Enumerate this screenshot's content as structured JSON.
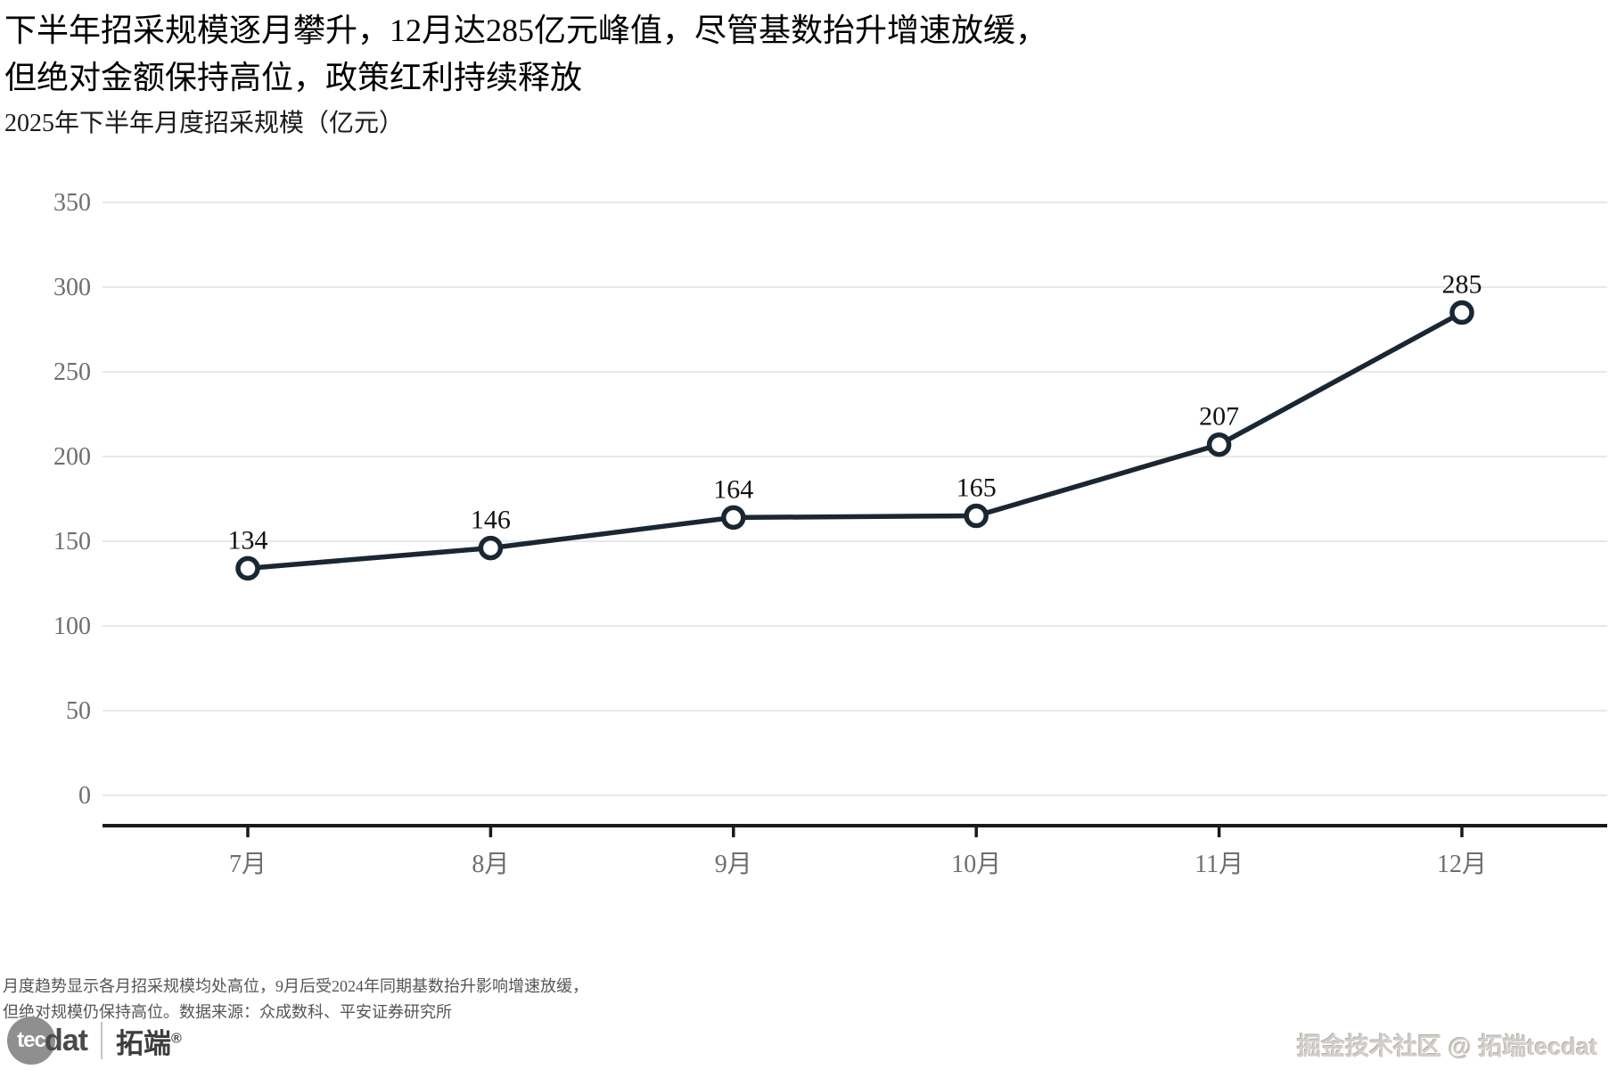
{
  "title": {
    "line1": "下半年招采规模逐月攀升，12月达285亿元峰值，尽管基数抬升增速放缓，",
    "line2": "但绝对金额保持高位，政策红利持续释放"
  },
  "subtitle": "2025年下半年月度招采规模（亿元）",
  "chart_data": {
    "type": "line",
    "title": "2025年下半年月度招采规模（亿元）",
    "categories": [
      "7月",
      "8月",
      "9月",
      "10月",
      "11月",
      "12月"
    ],
    "values": [
      134,
      146,
      164,
      165,
      207,
      285
    ],
    "xlabel": "",
    "ylabel": "",
    "ylim": [
      0,
      350
    ],
    "yticks": [
      0,
      50,
      100,
      150,
      200,
      250,
      300,
      350
    ],
    "grid": true,
    "legend": "none",
    "marker": "open-circle",
    "value_labels_shown": true,
    "colors": {
      "line": "#1a2733",
      "marker_fill": "#ffffff",
      "grid": "#dadada",
      "axis": "#1a1a1a",
      "tick_label": "#6e6e6e",
      "value_label": "#111111"
    }
  },
  "footer": {
    "line1": "月度趋势显示各月招采规模均处高位，9月后受2024年同期基数抬升影响增速放缓，",
    "line2": "但绝对规模仍保持高位。数据来源：众成数科、平安证券研究所"
  },
  "logo": {
    "tec": "tec",
    "dat": "dat",
    "brand": "拓端",
    "registered": "®"
  },
  "watermark": "掘金技术社区 @ 拓端tecdat"
}
